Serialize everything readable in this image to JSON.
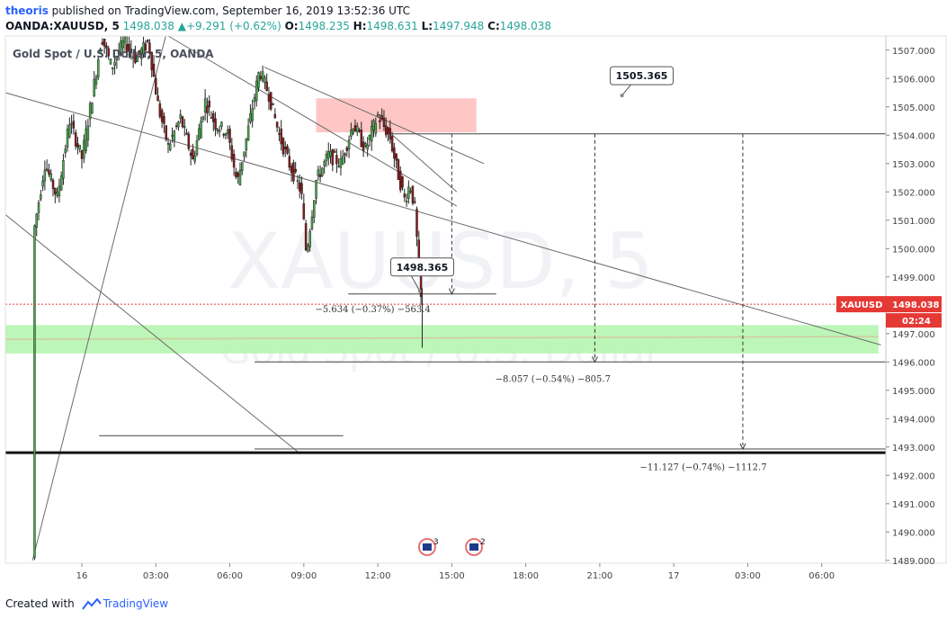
{
  "header": {
    "author": "theoris",
    "published_text": " published on TradingView.com, September 16, 2019 13:52:36 UTC",
    "symbol_line": "OANDA:XAUUSD, 5",
    "last": "1498.038",
    "change": "+9.291 (+0.62%)",
    "o_label": "O:",
    "o_value": "1498.235",
    "h_label": "H:",
    "h_value": "1498.631",
    "l_label": "L:",
    "l_value": "1497.948",
    "c_label": "C:",
    "c_value": "1498.038"
  },
  "legend_title": "Gold Spot / U.S. Dollar, 5, OANDA",
  "watermark": {
    "line1": "XAUUSD, 5",
    "line2": "Gold Spot / U.S. Dollar"
  },
  "footer": {
    "created_with": "Created with",
    "brand": "TradingView"
  },
  "colors": {
    "up": "#26a69a",
    "candle_up": "#4caf50",
    "candle_down": "#8b1a1a",
    "price_line": "#e53935",
    "supply_zone": "#ffc0c0",
    "demand_zone": "#b5f5b0"
  },
  "chart_data": {
    "type": "candlestick",
    "symbol": "XAUUSD",
    "interval": "5",
    "ylim": [
      1488.9,
      1507.5
    ],
    "y_ticks": [
      1489,
      1490,
      1491,
      1492,
      1493,
      1494,
      1495,
      1496,
      1497,
      1498,
      1499,
      1500,
      1501,
      1502,
      1503,
      1504,
      1505,
      1506,
      1507
    ],
    "y_tick_labels": [
      "1489.000",
      "1490.000",
      "1491.000",
      "1492.000",
      "1493.000",
      "1494.000",
      "1495.000",
      "1496.000",
      "1497.000",
      "1498.000",
      "1499.000",
      "1500.000",
      "1501.000",
      "1502.000",
      "1503.000",
      "1504.000",
      "1505.000",
      "1506.000",
      "1507.000"
    ],
    "x_ticks": [
      "16",
      "03:00",
      "06:00",
      "09:00",
      "12:00",
      "15:00",
      "18:00",
      "21:00",
      "17",
      "03:00",
      "06:00"
    ],
    "x_tick_hours": [
      0,
      3,
      6,
      9,
      12,
      15,
      18,
      21,
      24,
      27,
      30
    ],
    "xlim_hours": [
      -3.1,
      32.6
    ],
    "current_price": {
      "symbol": "XAUUSD",
      "value": 1498.038,
      "label": "1498.038",
      "countdown": "02:24"
    },
    "price_path": [
      [
        -2.0,
        1489.1
      ],
      [
        -1.95,
        1500.6
      ],
      [
        -1.5,
        1503.0
      ],
      [
        -1.0,
        1501.8
      ],
      [
        -0.5,
        1504.5
      ],
      [
        0.0,
        1503.2
      ],
      [
        0.5,
        1505.8
      ],
      [
        0.8,
        1507.5
      ],
      [
        1.2,
        1506.4
      ],
      [
        1.7,
        1507.3
      ],
      [
        2.2,
        1506.7
      ],
      [
        2.7,
        1507.3
      ],
      [
        3.1,
        1505.0
      ],
      [
        3.5,
        1503.6
      ],
      [
        4.0,
        1504.6
      ],
      [
        4.5,
        1503.1
      ],
      [
        5.0,
        1505.2
      ],
      [
        5.4,
        1504.4
      ],
      [
        5.9,
        1504.1
      ],
      [
        6.3,
        1502.3
      ],
      [
        6.7,
        1504.0
      ],
      [
        7.2,
        1506.3
      ],
      [
        7.6,
        1505.4
      ],
      [
        8.0,
        1504.0
      ],
      [
        8.4,
        1503.0
      ],
      [
        8.9,
        1502.0
      ],
      [
        9.1,
        1499.8
      ],
      [
        9.5,
        1502.4
      ],
      [
        10.0,
        1503.3
      ],
      [
        10.5,
        1503.0
      ],
      [
        11.0,
        1504.4
      ],
      [
        11.5,
        1503.5
      ],
      [
        12.0,
        1504.7
      ],
      [
        12.5,
        1503.9
      ],
      [
        12.8,
        1502.7
      ],
      [
        13.1,
        1501.7
      ],
      [
        13.3,
        1502.3
      ],
      [
        13.5,
        1501.4
      ],
      [
        13.6,
        1500.1
      ],
      [
        13.7,
        1498.4
      ],
      [
        13.8,
        1498.04
      ]
    ],
    "zones": [
      {
        "name": "supply",
        "from_hour": 9.5,
        "to_hour": 16.0,
        "y_low": 1504.1,
        "y_high": 1505.3
      },
      {
        "name": "demand",
        "from_hour": -3.1,
        "to_hour": 32.3,
        "y_low": 1496.3,
        "y_high": 1497.3
      }
    ],
    "horizontal_lines": [
      {
        "name": "resistance-1504",
        "y": 1504.05,
        "from_hour": 12.5,
        "to_hour": 32.6
      },
      {
        "name": "support-1492-8",
        "y": 1492.8,
        "from_hour": -3.1,
        "to_hour": 32.6,
        "heavy": true
      },
      {
        "name": "target-1498-4",
        "y": 1498.4,
        "from_hour": 10.8,
        "to_hour": 16.8
      },
      {
        "name": "target-1496",
        "y": 1496.0,
        "from_hour": 7.0,
        "to_hour": 32.6
      },
      {
        "name": "target-1492-9",
        "y": 1492.93,
        "from_hour": 7.0,
        "to_hour": 32.6
      },
      {
        "name": "short-level-1493-4",
        "y": 1493.4,
        "from_hour": 0.7,
        "to_hour": 10.6
      }
    ],
    "trend_lines": [
      {
        "name": "trend-steep-up",
        "from": [
          -2.0,
          1489.0
        ],
        "to": [
          3.4,
          1507.5
        ]
      },
      {
        "name": "trend-long-down",
        "from": [
          -3.1,
          1505.5
        ],
        "to": [
          32.4,
          1496.6
        ]
      },
      {
        "name": "trend-down-left",
        "from": [
          -3.1,
          1501.2
        ],
        "to": [
          8.8,
          1492.8
        ]
      },
      {
        "name": "trend-top-1",
        "from": [
          3.5,
          1507.5
        ],
        "to": [
          15.2,
          1501.5
        ]
      },
      {
        "name": "trend-top-2",
        "from": [
          7.4,
          1506.4
        ],
        "to": [
          16.3,
          1503.0
        ]
      },
      {
        "name": "trend-top-3",
        "from": [
          12.6,
          1504.0
        ],
        "to": [
          15.2,
          1502.0
        ]
      }
    ],
    "projections": [
      {
        "from_hour": 15.0,
        "y_from": 1504.05,
        "y_to": 1498.4
      },
      {
        "from_hour": 20.8,
        "y_from": 1504.05,
        "y_to": 1496.0
      },
      {
        "from_hour": 26.8,
        "y_from": 1504.05,
        "y_to": 1492.93
      }
    ],
    "callouts": [
      {
        "text": "1505.365",
        "hour": 22.7,
        "y": 1506.1,
        "anchor_hour": 21.9,
        "anchor_y": 1505.4
      },
      {
        "text": "1498.365",
        "hour": 13.8,
        "y": 1499.35,
        "anchor_hour": 13.7,
        "anchor_y": 1498.5
      }
    ],
    "measurements": [
      {
        "text": "−5.634 (−0.37%) −563.4",
        "hour": 11.8,
        "y": 1497.75
      },
      {
        "text": "−8.057 (−0.54%) −805.7",
        "hour": 19.1,
        "y": 1495.3
      },
      {
        "text": "−11.127 (−0.74%) −1112.7",
        "hour": 25.2,
        "y": 1492.18
      }
    ],
    "events": [
      {
        "hour": 14.0,
        "count": "3"
      },
      {
        "hour": 15.9,
        "count": "2"
      }
    ]
  }
}
